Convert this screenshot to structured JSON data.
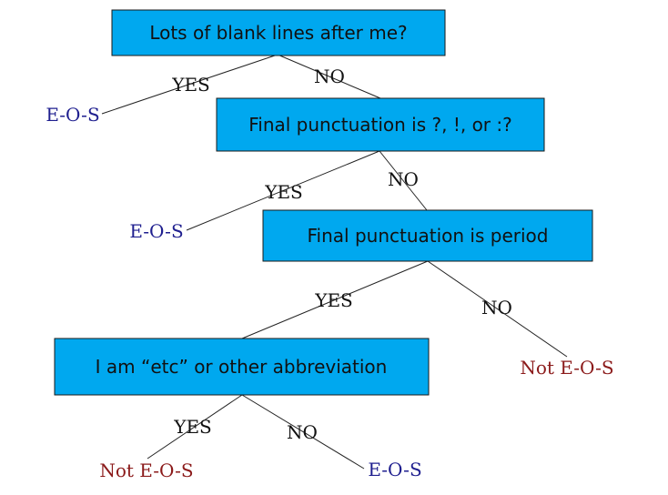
{
  "nodes": {
    "q1": "Lots of blank lines after me?",
    "q2": "Final punctuation is ?, !, or :?",
    "q3": "Final punctuation is period",
    "q4": "I am “etc” or other abbreviation"
  },
  "edge_labels": {
    "q1_yes": "YES",
    "q1_no": "NO",
    "q2_yes": "YES",
    "q2_no": "NO",
    "q3_yes": "YES",
    "q3_no": "NO",
    "q4_yes": "YES",
    "q4_no": "NO"
  },
  "leaves": {
    "q1_yes": "E-O-S",
    "q2_yes": "E-O-S",
    "q3_no": "Not E-O-S",
    "q4_yes": "Not E-O-S",
    "q4_no": "E-O-S"
  },
  "colors": {
    "box_fill": "#00a8ef",
    "eos_text": "#1f1f8f",
    "not_eos_text": "#8b1a1a"
  }
}
